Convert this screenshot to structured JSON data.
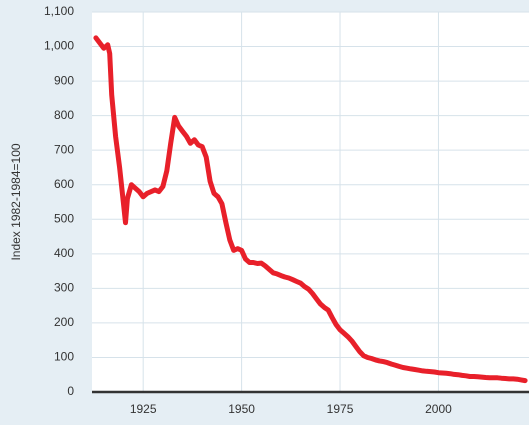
{
  "chart_data": {
    "type": "line",
    "title": "",
    "xlabel": "",
    "ylabel": "Index 1982-1984=100",
    "xlim": [
      1912,
      2023
    ],
    "ylim": [
      0,
      1100
    ],
    "x_ticks": [
      1925,
      1950,
      1975,
      2000
    ],
    "x_tick_labels": [
      "1925",
      "1950",
      "1975",
      "2000"
    ],
    "y_ticks": [
      0,
      100,
      200,
      300,
      400,
      500,
      600,
      700,
      800,
      900,
      1000,
      1100
    ],
    "y_tick_labels": [
      "0",
      "100",
      "200",
      "300",
      "400",
      "500",
      "600",
      "700",
      "800",
      "900",
      "1,000",
      "1,100"
    ],
    "grid": true,
    "colors": {
      "line": "#e8202a",
      "background": "#e5eef4",
      "plot": "#ffffff",
      "grid": "#d6e2ea",
      "baseline": "#333333"
    },
    "series": [
      {
        "values": [
          [
            1913,
            1025
          ],
          [
            1914,
            1010
          ],
          [
            1915,
            995
          ],
          [
            1916,
            1005
          ],
          [
            1916.5,
            980
          ],
          [
            1917,
            860
          ],
          [
            1918,
            740
          ],
          [
            1919,
            650
          ],
          [
            1920,
            545
          ],
          [
            1920.5,
            490
          ],
          [
            1921,
            560
          ],
          [
            1922,
            600
          ],
          [
            1923,
            590
          ],
          [
            1924,
            580
          ],
          [
            1925,
            565
          ],
          [
            1926,
            575
          ],
          [
            1927,
            580
          ],
          [
            1928,
            585
          ],
          [
            1929,
            580
          ],
          [
            1930,
            595
          ],
          [
            1931,
            640
          ],
          [
            1932,
            720
          ],
          [
            1933,
            795
          ],
          [
            1934,
            770
          ],
          [
            1935,
            755
          ],
          [
            1936,
            740
          ],
          [
            1937,
            720
          ],
          [
            1938,
            730
          ],
          [
            1939,
            715
          ],
          [
            1940,
            710
          ],
          [
            1941,
            680
          ],
          [
            1942,
            610
          ],
          [
            1943,
            575
          ],
          [
            1944,
            565
          ],
          [
            1945,
            545
          ],
          [
            1946,
            490
          ],
          [
            1947,
            440
          ],
          [
            1948,
            410
          ],
          [
            1949,
            415
          ],
          [
            1950,
            410
          ],
          [
            1951,
            385
          ],
          [
            1952,
            375
          ],
          [
            1953,
            375
          ],
          [
            1954,
            372
          ],
          [
            1955,
            373
          ],
          [
            1956,
            365
          ],
          [
            1957,
            355
          ],
          [
            1958,
            345
          ],
          [
            1959,
            342
          ],
          [
            1960,
            337
          ],
          [
            1961,
            333
          ],
          [
            1962,
            330
          ],
          [
            1963,
            325
          ],
          [
            1964,
            320
          ],
          [
            1965,
            315
          ],
          [
            1966,
            305
          ],
          [
            1967,
            298
          ],
          [
            1968,
            285
          ],
          [
            1969,
            270
          ],
          [
            1970,
            255
          ],
          [
            1971,
            245
          ],
          [
            1972,
            237
          ],
          [
            1973,
            215
          ],
          [
            1974,
            195
          ],
          [
            1975,
            180
          ],
          [
            1976,
            170
          ],
          [
            1977,
            160
          ],
          [
            1978,
            148
          ],
          [
            1979,
            132
          ],
          [
            1980,
            117
          ],
          [
            1981,
            105
          ],
          [
            1982,
            100
          ],
          [
            1983,
            97
          ],
          [
            1984,
            93
          ],
          [
            1985,
            90
          ],
          [
            1986,
            88
          ],
          [
            1987,
            85
          ],
          [
            1988,
            81
          ],
          [
            1989,
            78
          ],
          [
            1990,
            74
          ],
          [
            1991,
            71
          ],
          [
            1992,
            69
          ],
          [
            1993,
            67
          ],
          [
            1994,
            65
          ],
          [
            1995,
            63
          ],
          [
            1996,
            61
          ],
          [
            1997,
            60
          ],
          [
            1998,
            59
          ],
          [
            1999,
            58
          ],
          [
            2000,
            56
          ],
          [
            2001,
            55
          ],
          [
            2002,
            54
          ],
          [
            2003,
            53
          ],
          [
            2004,
            51
          ],
          [
            2005,
            50
          ],
          [
            2006,
            48
          ],
          [
            2007,
            47
          ],
          [
            2008,
            45
          ],
          [
            2009,
            45
          ],
          [
            2010,
            44
          ],
          [
            2011,
            43
          ],
          [
            2012,
            42
          ],
          [
            2013,
            41
          ],
          [
            2014,
            41
          ],
          [
            2015,
            41
          ],
          [
            2016,
            40
          ],
          [
            2017,
            39
          ],
          [
            2018,
            38
          ],
          [
            2019,
            38
          ],
          [
            2020,
            37
          ],
          [
            2021,
            35
          ],
          [
            2022,
            33
          ]
        ]
      }
    ]
  }
}
